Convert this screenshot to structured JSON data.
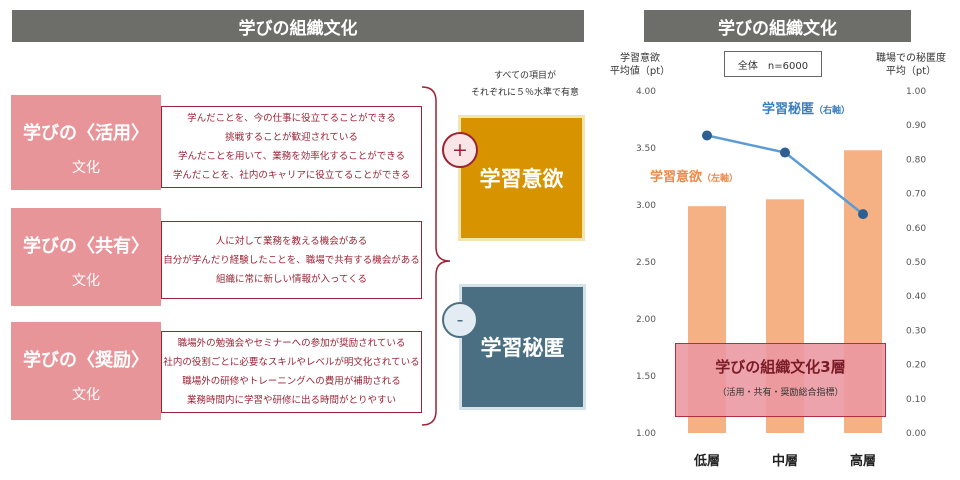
{
  "left": {
    "title": "学びの組織文化",
    "cultures": [
      {
        "name": "学びの〈活用〉",
        "suffix": "文化",
        "items": [
          "学んだことを、今の仕事に役立てることができる",
          "挑戦することが歓迎されている",
          "学んだことを用いて、業務を効率化することができる",
          "学んだことを、社内のキャリアに役立てることができる"
        ]
      },
      {
        "name": "学びの〈共有〉",
        "suffix": "文化",
        "items": [
          "人に対して業務を教える機会がある",
          "自分が学んだり経験したことを、職場で共有する機会がある",
          "組織に常に新しい情報が入ってくる"
        ]
      },
      {
        "name": "学びの〈奨励〉",
        "suffix": "文化",
        "items": [
          "職場外の勉強会やセミナーへの参加が奨励されている",
          "社内の役割ごとに必要なスキルやレベルが明文化されている",
          "職場外の研修やトレーニングへの費用が補助される",
          "業務時間内に学習や研修に出る時間がとりやすい"
        ]
      }
    ],
    "note_line1": "すべての項目が",
    "note_line2": "それぞれに５％水準で有意",
    "plus_sign": "+",
    "minus_sign": "-",
    "outcome_positive": "学習意欲",
    "outcome_negative": "学習秘匿",
    "colors": {
      "header": "#6d6d69",
      "pink": "#e8959a",
      "gold": "#d79300",
      "teal": "#4a6f82",
      "crimson": "#9b2335"
    }
  },
  "right": {
    "title": "学びの組織文化",
    "left_axis_title_line1": "学習意欲",
    "left_axis_title_line2": "平均値（pt）",
    "right_axis_title_line1": "職場での秘匿度",
    "right_axis_title_line2": "平均（pt）",
    "sample": "全体　n=6000",
    "label_bar": "学習意欲",
    "label_bar_axis": "（左軸）",
    "label_line": "学習秘匿",
    "label_line_axis": "（右軸）",
    "overlay_title": "学びの組織文化3層",
    "overlay_sub": "（活用・共有・奨励総合指標）"
  },
  "chart_data": {
    "type": "bar",
    "categories": [
      "低層",
      "中層",
      "高層"
    ],
    "series": [
      {
        "name": "学習意欲",
        "type": "bar",
        "axis": "left",
        "color": "#f5b183",
        "values": [
          2.99,
          3.05,
          3.48
        ]
      },
      {
        "name": "学習秘匿",
        "type": "line",
        "axis": "right",
        "color": "#5b9bd5",
        "values": [
          0.87,
          0.82,
          0.64
        ]
      }
    ],
    "ylim_left": [
      1.0,
      4.0
    ],
    "yticks_left": [
      "1.00",
      "1.50",
      "2.00",
      "2.50",
      "3.00",
      "3.50",
      "4.00"
    ],
    "ylim_right": [
      0.0,
      1.0
    ],
    "yticks_right": [
      "0.00",
      "0.10",
      "0.20",
      "0.30",
      "0.40",
      "0.50",
      "0.60",
      "0.70",
      "0.80",
      "0.90",
      "1.00"
    ],
    "grid": false
  }
}
